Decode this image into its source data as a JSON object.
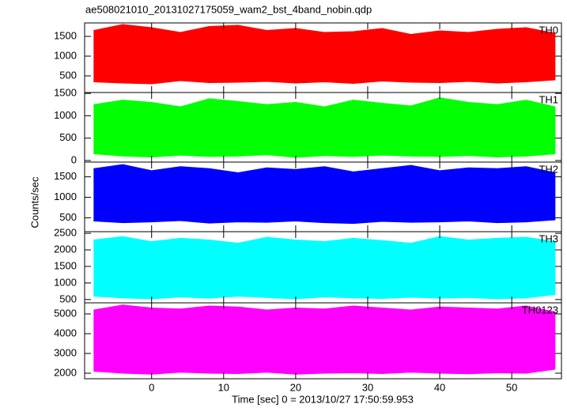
{
  "title": "ae508021010_20131027175059_wam2_bst_4band_nobin.qdp",
  "ylabel": "Counts/sec",
  "xlabel": "Time [sec] 0 = 2013/10/27 17:50:59.953",
  "chart_data": [
    {
      "type": "range-area",
      "xlim": [
        -9.3,
        56.9
      ],
      "xticks": [
        0,
        10,
        20,
        30,
        40,
        50
      ],
      "ylim": [
        80,
        1840
      ],
      "yticks": [
        500,
        1000,
        1500
      ],
      "x": [
        -8,
        -4,
        0,
        4,
        8,
        12,
        16,
        20,
        24,
        28,
        32,
        36,
        40,
        44,
        48,
        52,
        56
      ],
      "series": [
        {
          "name": "TH0",
          "color": "#ff0000",
          "high": [
            1650,
            1800,
            1720,
            1600,
            1750,
            1780,
            1650,
            1700,
            1600,
            1620,
            1700,
            1550,
            1640,
            1600,
            1680,
            1720,
            1580
          ],
          "low": [
            350,
            320,
            300,
            380,
            330,
            340,
            360,
            320,
            350,
            310,
            370,
            340,
            330,
            360,
            320,
            350,
            400
          ]
        }
      ]
    },
    {
      "type": "range-area",
      "xlim": [
        -9.3,
        56.9
      ],
      "xticks": [
        0,
        10,
        20,
        30,
        40,
        50
      ],
      "ylim": [
        -35,
        1520
      ],
      "yticks": [
        0,
        500,
        1000,
        1500
      ],
      "x": [
        -8,
        -4,
        0,
        4,
        8,
        12,
        16,
        20,
        24,
        28,
        32,
        36,
        40,
        44,
        48,
        52,
        56
      ],
      "series": [
        {
          "name": "TH1",
          "color": "#00ff00",
          "high": [
            1250,
            1350,
            1300,
            1200,
            1380,
            1320,
            1250,
            1300,
            1200,
            1350,
            1280,
            1220,
            1400,
            1300,
            1250,
            1350,
            1200
          ],
          "low": [
            150,
            100,
            80,
            120,
            90,
            100,
            130,
            70,
            110,
            90,
            120,
            100,
            90,
            110,
            80,
            100,
            150
          ]
        }
      ]
    },
    {
      "type": "range-area",
      "xlim": [
        -9.3,
        56.9
      ],
      "xticks": [
        0,
        10,
        20,
        30,
        40,
        50
      ],
      "ylim": [
        160,
        1860
      ],
      "yticks": [
        500,
        1000,
        1500
      ],
      "x": [
        -8,
        -4,
        0,
        4,
        8,
        12,
        16,
        20,
        24,
        28,
        32,
        36,
        40,
        44,
        48,
        52,
        56
      ],
      "series": [
        {
          "name": "TH2",
          "color": "#0000ff",
          "high": [
            1700,
            1800,
            1650,
            1750,
            1700,
            1600,
            1720,
            1680,
            1750,
            1620,
            1700,
            1780,
            1650,
            1720,
            1700,
            1750,
            1600
          ],
          "low": [
            420,
            380,
            400,
            430,
            370,
            400,
            390,
            420,
            380,
            360,
            410,
            390,
            400,
            420,
            380,
            400,
            450
          ]
        }
      ]
    },
    {
      "type": "range-area",
      "xlim": [
        -9.3,
        56.9
      ],
      "xticks": [
        0,
        10,
        20,
        30,
        40,
        50
      ],
      "ylim": [
        400,
        2550
      ],
      "yticks": [
        500,
        1000,
        1500,
        2000,
        2500
      ],
      "x": [
        -8,
        -4,
        0,
        4,
        8,
        12,
        16,
        20,
        24,
        28,
        32,
        36,
        40,
        44,
        48,
        52,
        56
      ],
      "series": [
        {
          "name": "TH3",
          "color": "#00ffff",
          "high": [
            2300,
            2400,
            2250,
            2350,
            2300,
            2200,
            2380,
            2300,
            2250,
            2350,
            2280,
            2200,
            2400,
            2300,
            2350,
            2380,
            2250
          ],
          "low": [
            600,
            550,
            520,
            580,
            540,
            600,
            560,
            520,
            580,
            550,
            530,
            570,
            540,
            560,
            520,
            550,
            650
          ]
        }
      ]
    },
    {
      "type": "range-area",
      "xlim": [
        -9.3,
        56.9
      ],
      "xticks": [
        0,
        10,
        20,
        30,
        40,
        50
      ],
      "ylim": [
        1720,
        5560
      ],
      "yticks": [
        2000,
        3000,
        4000,
        5000
      ],
      "x": [
        -8,
        -4,
        0,
        4,
        8,
        12,
        16,
        20,
        24,
        28,
        32,
        36,
        40,
        44,
        48,
        52,
        56
      ],
      "series": [
        {
          "name": "TH0123",
          "color": "#ff00ff",
          "high": [
            5200,
            5450,
            5300,
            5250,
            5400,
            5350,
            5200,
            5300,
            5250,
            5400,
            5300,
            5200,
            5350,
            5300,
            5250,
            5400,
            5100
          ],
          "low": [
            2100,
            2000,
            1950,
            2050,
            2000,
            1980,
            2050,
            1950,
            2000,
            2020,
            1980,
            2050,
            2000,
            1970,
            2020,
            2000,
            2200
          ]
        }
      ]
    }
  ]
}
